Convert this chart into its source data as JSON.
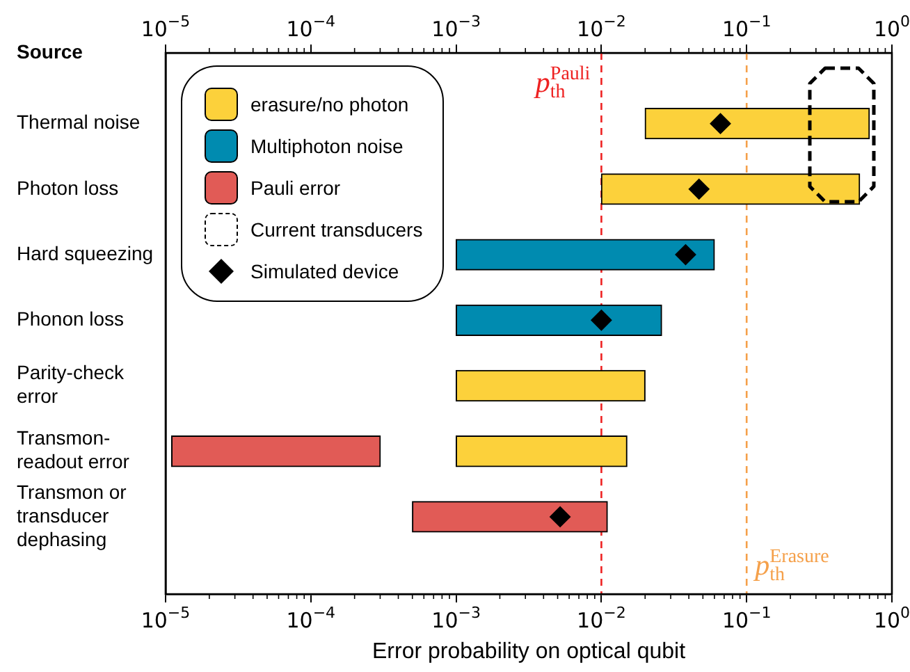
{
  "chart_data": {
    "type": "bar",
    "orientation": "horizontal",
    "ylabel": "Source",
    "xlabel": "Error probability on optical qubit",
    "categories": [
      "Thermal noise",
      "Photon loss",
      "Hard squeezing",
      "Phonon loss",
      "Parity-check error",
      "Transmon-readout error",
      "Transmon or transducer dephasing"
    ],
    "log": "x",
    "grid": false,
    "legend": "top left",
    "xlim": [
      1e-05,
      1
    ],
    "xticks": [
      {
        "value": 1e-05,
        "label": "10$^{−5}$"
      },
      {
        "value": 0.0001,
        "label": "10$^{−4}$"
      },
      {
        "value": 0.001,
        "label": "10$^{−3}$"
      },
      {
        "value": 0.01,
        "label": "10$^{−2}$"
      },
      {
        "value": 0.1,
        "label": "10$^{−1}$"
      },
      {
        "value": 1,
        "label": "10$^{0}$"
      }
    ],
    "series": [
      {
        "name": "erasure/no photon",
        "color": "#fcd13b",
        "base": [
          0.02,
          0.01,
          null,
          null,
          0.001,
          0.001,
          null
        ],
        "values": [
          0.68,
          0.59,
          null,
          null,
          0.019,
          0.014,
          null
        ]
      },
      {
        "name": "Multiphoton noise",
        "color": "#008bb0",
        "base": [
          null,
          null,
          0.001,
          0.001,
          null,
          null,
          null
        ],
        "values": [
          null,
          null,
          0.059,
          0.025,
          null,
          null,
          null
        ]
      },
      {
        "name": "Pauli error",
        "color": "#e15b56",
        "base": [
          null,
          null,
          null,
          null,
          null,
          1.1e-05,
          0.0005
        ],
        "values": [
          null,
          null,
          null,
          null,
          null,
          0.00029,
          0.0105
        ]
      },
      {
        "type": "scatter",
        "name": "Simulated device",
        "color": "#000000",
        "marker": "diamond",
        "values": [
          0.066,
          0.047,
          0.038,
          0.01,
          null,
          null,
          0.0052
        ]
      }
    ],
    "annotations": [
      "Current transducers"
    ],
    "ref_lines": [
      {
        "axis": "x",
        "value": 0.01,
        "label": "p$_{th}$$^{Pauli}$",
        "color": "#ee2222",
        "line_style": "dashed"
      },
      {
        "axis": "x",
        "value": 0.1,
        "label": "p$_{th}$$^{Erasure}$",
        "color": "#f5a04a",
        "line_style": "dashed"
      }
    ]
  }
}
